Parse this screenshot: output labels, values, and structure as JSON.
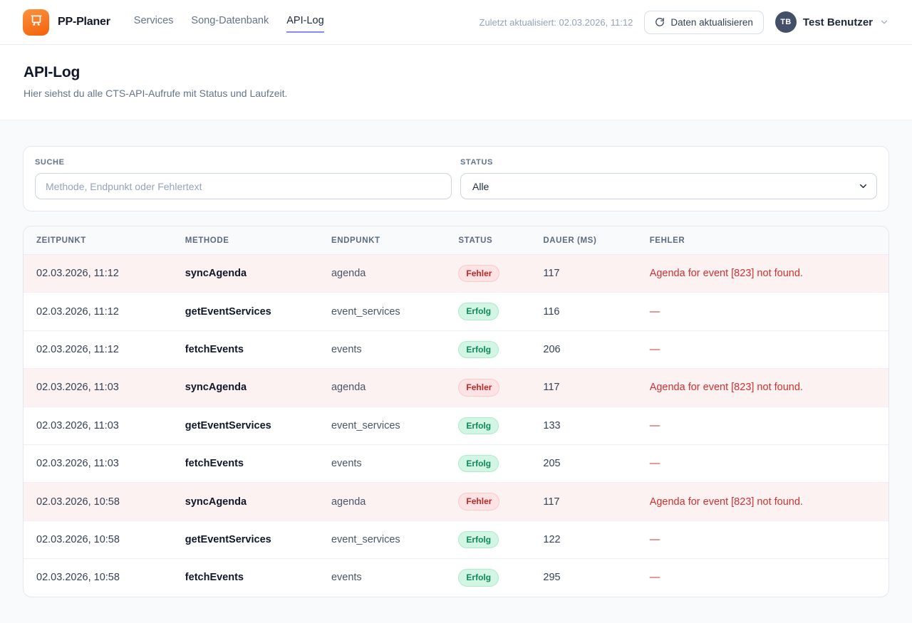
{
  "header": {
    "brand": "PP-Planer",
    "nav": [
      {
        "label": "Services",
        "active": false
      },
      {
        "label": "Song-Datenbank",
        "active": false
      },
      {
        "label": "API-Log",
        "active": true
      }
    ],
    "last_updated": "Zuletzt aktualisiert: 02.03.2026, 11:12",
    "refresh_button": "Daten aktualisieren",
    "user": {
      "initials": "TB",
      "name": "Test Benutzer"
    }
  },
  "page": {
    "title": "API-Log",
    "subtitle": "Hier siehst du alle CTS-API-Aufrufe mit Status und Laufzeit."
  },
  "filters": {
    "search_label": "SUCHE",
    "search_placeholder": "Methode, Endpunkt oder Fehlertext",
    "status_label": "STATUS",
    "status_value": "Alle"
  },
  "table": {
    "columns": [
      "ZEITPUNKT",
      "METHODE",
      "ENDPUNKT",
      "STATUS",
      "DAUER (MS)",
      "FEHLER"
    ],
    "rows": [
      {
        "time": "02.03.2026, 11:12",
        "method": "syncAgenda",
        "endpoint": "agenda",
        "status": "Fehler",
        "duration": "117",
        "error": "Agenda for event [823] not found."
      },
      {
        "time": "02.03.2026, 11:12",
        "method": "getEventServices",
        "endpoint": "event_services",
        "status": "Erfolg",
        "duration": "116",
        "error": "—"
      },
      {
        "time": "02.03.2026, 11:12",
        "method": "fetchEvents",
        "endpoint": "events",
        "status": "Erfolg",
        "duration": "206",
        "error": "—"
      },
      {
        "time": "02.03.2026, 11:03",
        "method": "syncAgenda",
        "endpoint": "agenda",
        "status": "Fehler",
        "duration": "117",
        "error": "Agenda for event [823] not found."
      },
      {
        "time": "02.03.2026, 11:03",
        "method": "getEventServices",
        "endpoint": "event_services",
        "status": "Erfolg",
        "duration": "133",
        "error": "—"
      },
      {
        "time": "02.03.2026, 11:03",
        "method": "fetchEvents",
        "endpoint": "events",
        "status": "Erfolg",
        "duration": "205",
        "error": "—"
      },
      {
        "time": "02.03.2026, 10:58",
        "method": "syncAgenda",
        "endpoint": "agenda",
        "status": "Fehler",
        "duration": "117",
        "error": "Agenda for event [823] not found."
      },
      {
        "time": "02.03.2026, 10:58",
        "method": "getEventServices",
        "endpoint": "event_services",
        "status": "Erfolg",
        "duration": "122",
        "error": "—"
      },
      {
        "time": "02.03.2026, 10:58",
        "method": "fetchEvents",
        "endpoint": "events",
        "status": "Erfolg",
        "duration": "295",
        "error": "—"
      }
    ]
  },
  "colors": {
    "brand_orange": "#f4610c",
    "active_tab_underline": "#818cf8",
    "error_text": "#d23030",
    "error_row_bg": "#fdf2f2",
    "badge_error_bg": "#fde3e3",
    "badge_success_bg": "#d3f5e3",
    "badge_success_text": "#0a8a56"
  }
}
